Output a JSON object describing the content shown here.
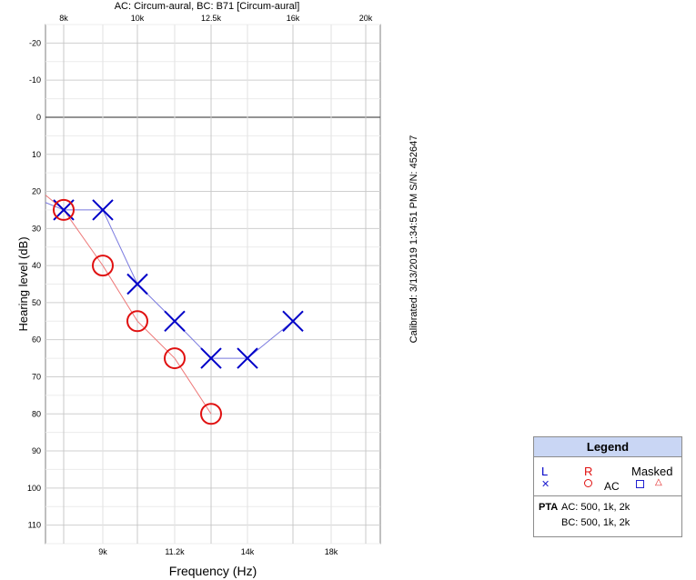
{
  "header": {
    "title": "AC: Circum-aural, BC: B71 [Circum-aural]"
  },
  "side_note": "Calibrated: 3/13/2019 1:34:51 PM  S/N: 452647",
  "legend": {
    "title": "Legend",
    "left_label": "L",
    "right_label": "R",
    "masked_label": "Masked",
    "ac_label": "AC",
    "left_symbol": "✕",
    "masked_right_symbol": "△",
    "pta_label": "PTA",
    "pta_ac": "AC:  500, 1k, 2k",
    "pta_bc": "BC:  500, 1k, 2k"
  },
  "chart_data": {
    "type": "scatter",
    "xlabel": "Frequency (Hz)",
    "ylabel": "Hearing level (dB)",
    "ylim": [
      -25,
      115
    ],
    "y_inverted": true,
    "yticks": [
      -20,
      -10,
      0,
      10,
      20,
      30,
      40,
      50,
      60,
      70,
      80,
      90,
      100,
      110
    ],
    "top_ticks": [
      "8k",
      "10k",
      "12.5k",
      "16k",
      "20k"
    ],
    "bottom_ticks": [
      "9k",
      "11.2k",
      "14k",
      "18k"
    ],
    "grid": true,
    "x_categories": [
      "8k",
      "9k",
      "10k",
      "11.2k",
      "12.5k",
      "14k",
      "16k",
      "18k",
      "20k"
    ],
    "series": [
      {
        "name": "L",
        "symbol": "x",
        "color": "#0000c8",
        "line_color": "#7b7be0",
        "points": [
          [
            "8k",
            25
          ],
          [
            "9k",
            25
          ],
          [
            "10k",
            45
          ],
          [
            "11.2k",
            55
          ],
          [
            "12.5k",
            65
          ],
          [
            "14k",
            65
          ],
          [
            "16k",
            55
          ]
        ],
        "lead_in": 23
      },
      {
        "name": "R",
        "symbol": "o",
        "color": "#e01010",
        "line_color": "#ee7777",
        "points": [
          [
            "8k",
            25
          ],
          [
            "9k",
            40
          ],
          [
            "10k",
            55
          ],
          [
            "11.2k",
            65
          ],
          [
            "12.5k",
            80
          ]
        ],
        "lead_in": 21
      }
    ]
  }
}
